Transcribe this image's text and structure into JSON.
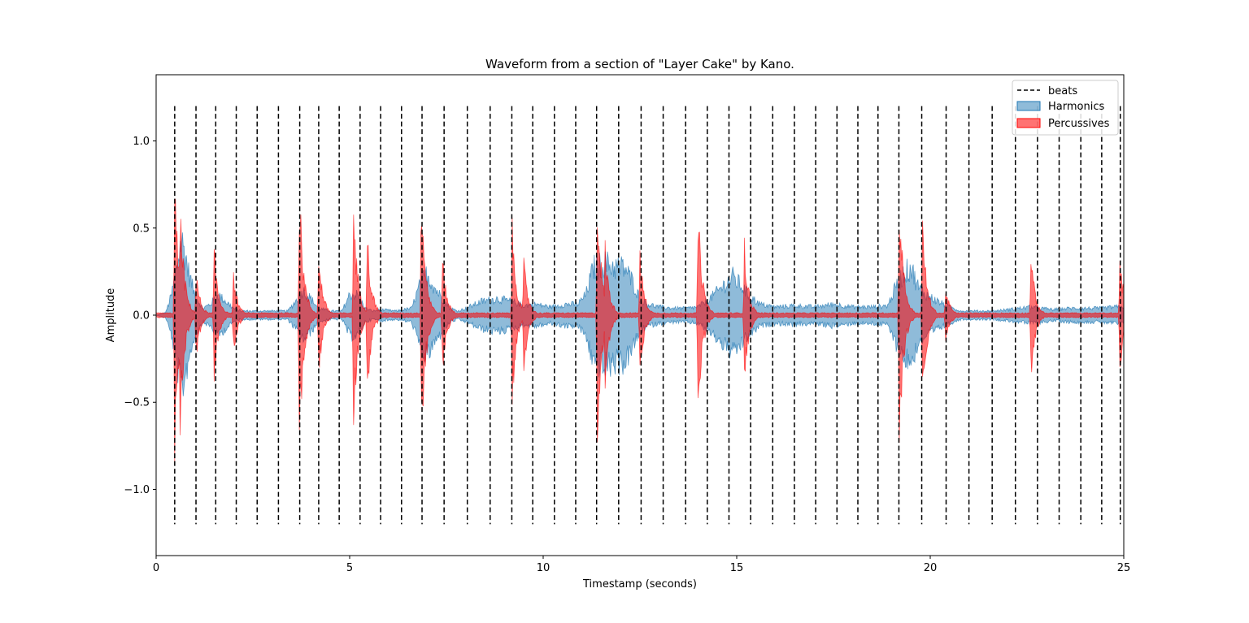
{
  "chart_data": {
    "type": "area",
    "title": "Waveform from a section of \"Layer Cake\" by Kano.",
    "xlabel": "Timestamp (seconds)",
    "ylabel": "Amplitude",
    "xlim": [
      0,
      25
    ],
    "ylim": [
      -1.38,
      1.38
    ],
    "xticks": [
      0,
      5,
      10,
      15,
      20,
      25
    ],
    "xtick_labels": [
      "0",
      "5",
      "10",
      "15",
      "20",
      "25"
    ],
    "yticks": [
      1.0,
      0.5,
      0.0,
      -0.5,
      -1.0
    ],
    "ytick_labels": [
      "1.0",
      "0.5",
      "0.0",
      "−0.5",
      "−1.0"
    ],
    "grid": false,
    "legend_position": "top-right",
    "beat_line_range": [
      -1.2,
      1.2
    ],
    "series": [
      {
        "name": "beats",
        "kind": "vlines",
        "style": "dashed",
        "color": "#000000",
        "x": [
          0.48,
          1.03,
          1.54,
          2.07,
          2.61,
          3.16,
          3.71,
          4.2,
          4.73,
          5.27,
          5.8,
          6.34,
          6.87,
          7.44,
          8.04,
          8.63,
          9.19,
          9.73,
          10.29,
          10.84,
          11.38,
          11.95,
          12.53,
          13.1,
          13.68,
          14.24,
          14.8,
          15.36,
          15.93,
          16.49,
          17.04,
          17.59,
          18.13,
          18.65,
          19.19,
          19.78,
          20.41,
          21.0,
          21.6,
          22.2,
          22.77,
          23.33,
          23.89,
          24.43,
          24.91
        ]
      },
      {
        "name": "Harmonics",
        "kind": "waveform",
        "color": "#1f77b4",
        "fill_opacity": 0.5,
        "envelope_x": [
          0.0,
          0.25,
          0.4,
          0.5,
          0.65,
          0.75,
          0.85,
          1.0,
          1.2,
          1.4,
          1.6,
          1.8,
          2.0,
          2.2,
          2.6,
          3.0,
          3.4,
          3.6,
          3.8,
          4.0,
          4.2,
          4.5,
          4.8,
          5.0,
          5.2,
          5.4,
          5.6,
          5.8,
          6.2,
          6.6,
          6.85,
          7.0,
          7.2,
          7.4,
          7.6,
          7.8,
          8.0,
          8.4,
          8.8,
          9.2,
          9.5,
          9.8,
          10.2,
          10.6,
          10.9,
          11.1,
          11.3,
          11.6,
          11.9,
          12.1,
          12.3,
          12.5,
          12.7,
          13.0,
          13.4,
          13.7,
          14.0,
          14.3,
          14.6,
          14.9,
          15.1,
          15.3,
          15.6,
          16.0,
          16.5,
          17.0,
          17.5,
          18.0,
          18.5,
          18.9,
          19.1,
          19.3,
          19.5,
          19.7,
          19.9,
          20.2,
          20.5,
          20.8,
          21.2,
          21.6,
          22.0,
          22.3,
          22.6,
          22.9,
          23.2,
          23.6,
          24.0,
          24.4,
          24.8,
          25.0
        ],
        "envelope": [
          0.0,
          0.02,
          0.15,
          0.3,
          0.55,
          0.45,
          0.3,
          0.15,
          0.05,
          0.08,
          0.15,
          0.1,
          0.05,
          0.03,
          0.03,
          0.03,
          0.03,
          0.1,
          0.18,
          0.12,
          0.05,
          0.03,
          0.03,
          0.15,
          0.15,
          0.05,
          0.03,
          0.04,
          0.03,
          0.05,
          0.25,
          0.3,
          0.2,
          0.12,
          0.05,
          0.03,
          0.05,
          0.1,
          0.12,
          0.1,
          0.07,
          0.08,
          0.06,
          0.08,
          0.08,
          0.15,
          0.35,
          0.38,
          0.35,
          0.35,
          0.25,
          0.12,
          0.08,
          0.06,
          0.05,
          0.05,
          0.06,
          0.12,
          0.2,
          0.28,
          0.22,
          0.15,
          0.08,
          0.06,
          0.07,
          0.06,
          0.08,
          0.06,
          0.06,
          0.07,
          0.2,
          0.3,
          0.35,
          0.2,
          0.15,
          0.1,
          0.06,
          0.03,
          0.03,
          0.03,
          0.04,
          0.05,
          0.06,
          0.05,
          0.04,
          0.05,
          0.05,
          0.05,
          0.06,
          0.06
        ]
      },
      {
        "name": "Percussives",
        "kind": "waveform",
        "color": "#ff0000",
        "fill_opacity": 0.55,
        "peaks": [
          {
            "x": 0.48,
            "amp": 0.85
          },
          {
            "x": 0.62,
            "amp": 0.72
          },
          {
            "x": 1.03,
            "amp": 0.28
          },
          {
            "x": 1.5,
            "amp": 0.42
          },
          {
            "x": 2.0,
            "amp": 0.25
          },
          {
            "x": 3.7,
            "amp": 0.84
          },
          {
            "x": 4.2,
            "amp": 0.4
          },
          {
            "x": 5.1,
            "amp": 0.72
          },
          {
            "x": 5.45,
            "amp": 0.55
          },
          {
            "x": 6.85,
            "amp": 0.87
          },
          {
            "x": 7.4,
            "amp": 0.36
          },
          {
            "x": 9.2,
            "amp": 0.56
          },
          {
            "x": 9.5,
            "amp": 0.35
          },
          {
            "x": 11.4,
            "amp": 0.78
          },
          {
            "x": 11.6,
            "amp": 0.45
          },
          {
            "x": 12.5,
            "amp": 0.4
          },
          {
            "x": 14.0,
            "amp": 0.69
          },
          {
            "x": 15.2,
            "amp": 0.45
          },
          {
            "x": 19.2,
            "amp": 0.82
          },
          {
            "x": 19.8,
            "amp": 0.6
          },
          {
            "x": 20.4,
            "amp": 0.18
          },
          {
            "x": 22.6,
            "amp": 0.4
          },
          {
            "x": 24.9,
            "amp": 0.38
          }
        ],
        "baseline_amp": 0.015
      }
    ],
    "legend": [
      {
        "label": "beats",
        "kind": "dashed-line",
        "color": "#000000"
      },
      {
        "label": "Harmonics",
        "kind": "patch",
        "color": "#1f77b4"
      },
      {
        "label": "Percussives",
        "kind": "patch",
        "color": "#ff0000"
      }
    ]
  }
}
